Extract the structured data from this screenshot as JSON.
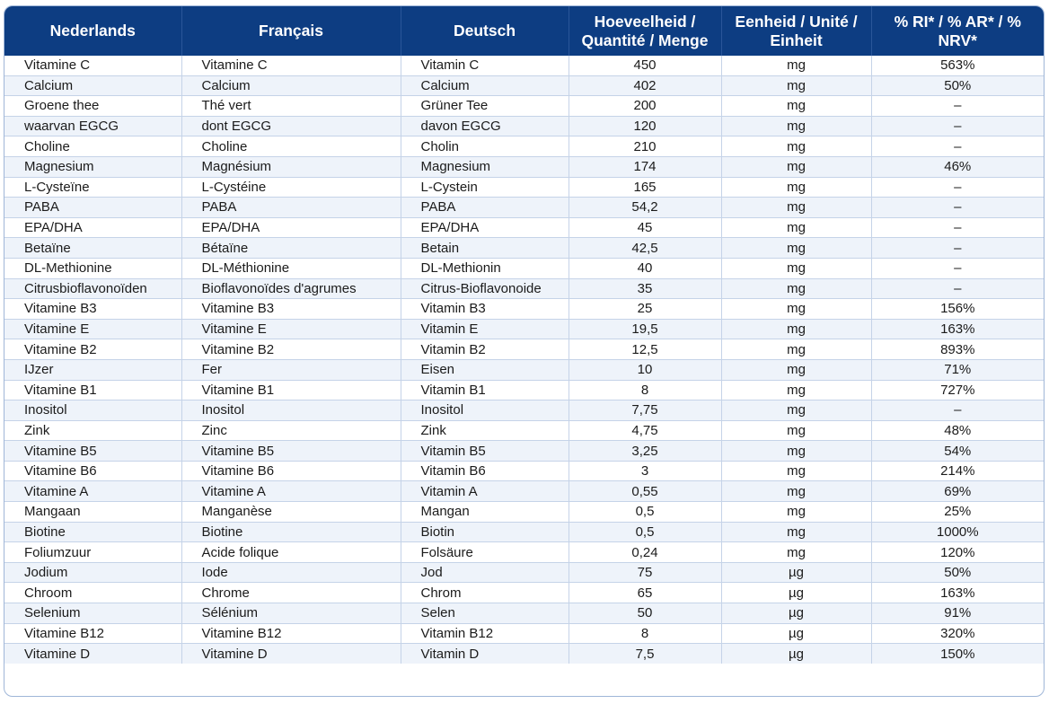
{
  "table": {
    "headers": [
      "Nederlands",
      "Français",
      "Deutsch",
      "Hoeveelheid / Quantité / Menge",
      "Eenheid / Unité / Einheit",
      "% RI* / % AR* / % NRV*"
    ],
    "rows": [
      [
        "Vitamine C",
        "Vitamine C",
        "Vitamin C",
        "450",
        "mg",
        "563%"
      ],
      [
        "Calcium",
        "Calcium",
        "Calcium",
        "402",
        "mg",
        "50%"
      ],
      [
        "Groene thee",
        "Thé vert",
        "Grüner Tee",
        "200",
        "mg",
        "–"
      ],
      [
        "waarvan EGCG",
        "dont EGCG",
        "davon EGCG",
        "120",
        "mg",
        "–"
      ],
      [
        "Choline",
        "Choline",
        "Cholin",
        "210",
        "mg",
        "–"
      ],
      [
        "Magnesium",
        "Magnésium",
        "Magnesium",
        "174",
        "mg",
        "46%"
      ],
      [
        "L-Cysteïne",
        "L-Cystéine",
        "L-Cystein",
        "165",
        "mg",
        "–"
      ],
      [
        "PABA",
        "PABA",
        "PABA",
        "54,2",
        "mg",
        "–"
      ],
      [
        "EPA/DHA",
        "EPA/DHA",
        "EPA/DHA",
        "45",
        "mg",
        "–"
      ],
      [
        "Betaïne",
        "Bétaïne",
        "Betain",
        "42,5",
        "mg",
        "–"
      ],
      [
        "DL-Methionine",
        "DL-Méthionine",
        "DL-Methionin",
        "40",
        "mg",
        "–"
      ],
      [
        "Citrusbioflavonoïden",
        "Bioflavonoïdes d'agrumes",
        "Citrus-Bioflavonoide",
        "35",
        "mg",
        "–"
      ],
      [
        "Vitamine B3",
        "Vitamine B3",
        "Vitamin B3",
        "25",
        "mg",
        "156%"
      ],
      [
        "Vitamine E",
        "Vitamine E",
        "Vitamin E",
        "19,5",
        "mg",
        "163%"
      ],
      [
        "Vitamine B2",
        "Vitamine B2",
        "Vitamin B2",
        "12,5",
        "mg",
        "893%"
      ],
      [
        "IJzer",
        "Fer",
        "Eisen",
        "10",
        "mg",
        "71%"
      ],
      [
        "Vitamine B1",
        "Vitamine B1",
        "Vitamin B1",
        "8",
        "mg",
        "727%"
      ],
      [
        "Inositol",
        "Inositol",
        "Inositol",
        "7,75",
        "mg",
        "–"
      ],
      [
        "Zink",
        "Zinc",
        "Zink",
        "4,75",
        "mg",
        "48%"
      ],
      [
        "Vitamine B5",
        "Vitamine B5",
        "Vitamin B5",
        "3,25",
        "mg",
        "54%"
      ],
      [
        "Vitamine B6",
        "Vitamine B6",
        "Vitamin B6",
        "3",
        "mg",
        "214%"
      ],
      [
        "Vitamine A",
        "Vitamine A",
        "Vitamin A",
        "0,55",
        "mg",
        "69%"
      ],
      [
        "Mangaan",
        "Manganèse",
        "Mangan",
        "0,5",
        "mg",
        "25%"
      ],
      [
        "Biotine",
        "Biotine",
        "Biotin",
        "0,5",
        "mg",
        "1000%"
      ],
      [
        "Foliumzuur",
        "Acide folique",
        "Folsäure",
        "0,24",
        "mg",
        "120%"
      ],
      [
        "Jodium",
        "Iode",
        "Jod",
        "75",
        "µg",
        "50%"
      ],
      [
        "Chroom",
        "Chrome",
        "Chrom",
        "65",
        "µg",
        "163%"
      ],
      [
        "Selenium",
        "Sélénium",
        "Selen",
        "50",
        "µg",
        "91%"
      ],
      [
        "Vitamine B12",
        "Vitamine B12",
        "Vitamin B12",
        "8",
        "µg",
        "320%"
      ],
      [
        "Vitamine D",
        "Vitamine D",
        "Vitamin D",
        "7,5",
        "µg",
        "150%"
      ]
    ]
  },
  "colors": {
    "header_bg": "#0d3d82",
    "header_text": "#ffffff",
    "row_alt": "#eef3fa",
    "grid": "#c5d3e8"
  }
}
